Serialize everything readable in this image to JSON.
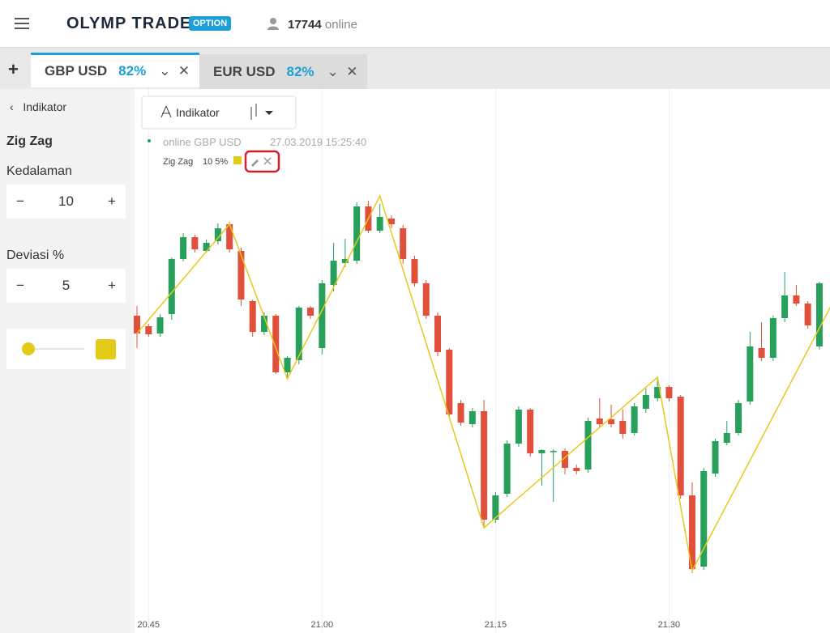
{
  "header": {
    "logo": "OLYMP TRADE",
    "badge": "OPTION",
    "online_count": "17744",
    "online_label": "online"
  },
  "tabs": [
    {
      "pair": "GBP USD",
      "payout": "82%"
    },
    {
      "pair": "EUR USD",
      "payout": "82%"
    }
  ],
  "sidebar": {
    "back": "Indikator",
    "indicator": "Zig Zag",
    "depth_label": "Kedalaman",
    "depth": 10,
    "deviation_label": "Deviasi %",
    "deviation": 5
  },
  "toolbar": {
    "indicator_button": "Indikator"
  },
  "legend": {
    "status": "online GBP USD",
    "timestamp": "27.03.2019 15:25:40",
    "indicator": "Zig Zag",
    "params": "10 5%"
  },
  "chart_data": {
    "type": "candlestick",
    "categories": [
      null,
      "20.45",
      null,
      null,
      null,
      null,
      null,
      null,
      null,
      null,
      null,
      null,
      null,
      null,
      null,
      null,
      "21.00",
      null,
      null,
      null,
      null,
      null,
      null,
      null,
      null,
      null,
      null,
      null,
      null,
      null,
      null,
      "21.15",
      null,
      null,
      null,
      null,
      null,
      null,
      null,
      null,
      null,
      null,
      null,
      null,
      null,
      null,
      "21.30",
      null,
      null,
      null,
      null,
      null,
      null,
      null,
      null,
      null,
      null,
      null,
      null,
      null
    ],
    "open": [
      392,
      379,
      370,
      394,
      462,
      489,
      472,
      484,
      505,
      472,
      410,
      372,
      392,
      322,
      337,
      402,
      352,
      430,
      457,
      460,
      527,
      497,
      512,
      500,
      462,
      432,
      392,
      350,
      284,
      258,
      274,
      140,
      172,
      234,
      276,
      222,
      225,
      225,
      204,
      202,
      265,
      264,
      262,
      247,
      277,
      290,
      304,
      292,
      170,
      82,
      197,
      235,
      247,
      286,
      352,
      340,
      389,
      417,
      407,
      354
    ],
    "high": [
      404,
      382,
      394,
      464,
      494,
      492,
      486,
      506,
      508,
      476,
      412,
      396,
      394,
      342,
      404,
      404,
      436,
      482,
      487,
      532,
      534,
      530,
      516,
      504,
      466,
      436,
      396,
      352,
      288,
      278,
      288,
      174,
      238,
      280,
      278,
      227,
      227,
      228,
      208,
      266,
      290,
      282,
      276,
      284,
      302,
      316,
      306,
      294,
      186,
      204,
      240,
      262,
      288,
      372,
      384,
      392,
      446,
      430,
      410,
      434
    ],
    "low": [
      352,
      366,
      366,
      387,
      459,
      470,
      470,
      480,
      470,
      404,
      366,
      368,
      320,
      316,
      332,
      388,
      344,
      422,
      452,
      456,
      494,
      494,
      500,
      456,
      428,
      388,
      342,
      266,
      256,
      254,
      130,
      136,
      168,
      230,
      218,
      182,
      162,
      196,
      196,
      198,
      254,
      254,
      240,
      244,
      272,
      286,
      286,
      166,
      74,
      78,
      193,
      232,
      244,
      282,
      336,
      336,
      384,
      404,
      376,
      350
    ],
    "close": [
      370,
      369,
      390,
      462,
      489,
      474,
      482,
      500,
      474,
      412,
      372,
      392,
      322,
      340,
      402,
      392,
      432,
      460,
      462,
      527,
      497,
      514,
      505,
      462,
      432,
      392,
      347,
      270,
      260,
      274,
      140,
      170,
      234,
      276,
      222,
      226,
      225,
      204,
      200,
      262,
      258,
      258,
      246,
      280,
      294,
      304,
      290,
      170,
      79,
      200,
      237,
      247,
      284,
      354,
      340,
      389,
      417,
      407,
      380,
      432
    ],
    "up_color": "#27a05c",
    "down_color": "#e0503a",
    "zigzag": {
      "name": "Zig Zag",
      "color": "#e8c81e",
      "x": [
        0,
        8,
        13,
        21,
        30,
        45,
        48,
        60
      ],
      "values": [
        370,
        505,
        314,
        540,
        130,
        316,
        77,
        404
      ]
    },
    "ylim": [
      0,
      672
    ]
  }
}
